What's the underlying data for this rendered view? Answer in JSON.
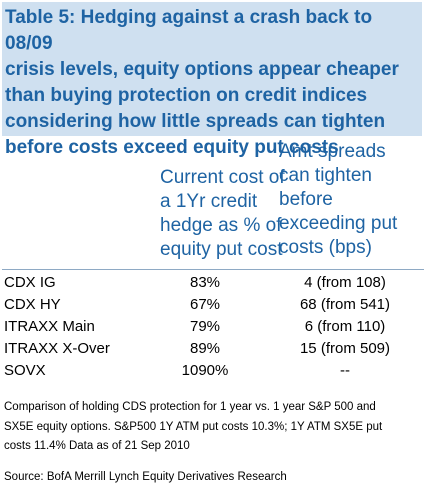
{
  "title": "Table 5: Hedging against a crash back to 08/09\ncrisis levels, equity options appear cheaper\nthan buying protection on credit indices\nconsidering how little spreads can tighten\nbefore costs exceed equity put costs",
  "columns": {
    "current_cost": "Current cost of\na 1Yr credit\nhedge as % of\nequity put cost",
    "spread_tighten": "Amt spreads\ncan tighten\nbefore\nexceeding put\ncosts (bps)"
  },
  "rows": [
    {
      "name": "CDX IG",
      "cost": "83%",
      "spread": "4 (from 108)"
    },
    {
      "name": "CDX HY",
      "cost": "67%",
      "spread": "68 (from 541)"
    },
    {
      "name": "ITRAXX Main",
      "cost": "79%",
      "spread": "6 (from 110)"
    },
    {
      "name": "ITRAXX X-Over",
      "cost": "89%",
      "spread": "15 (from 509)"
    },
    {
      "name": "SOVX",
      "cost": "1090%",
      "spread": "--"
    }
  ],
  "footnote": "Comparison of holding CDS protection for 1 year vs. 1 year S&P 500 and\nSX5E equity options. S&P500 1Y ATM put costs 10.3%; 1Y ATM SX5E put\ncosts 11.4% Data as of 21 Sep 2010",
  "source": "Source: BofA Merrill Lynch Equity Derivatives Research",
  "colors": {
    "title_background": "#cfe0f0",
    "accent_text": "#1e63a3"
  }
}
